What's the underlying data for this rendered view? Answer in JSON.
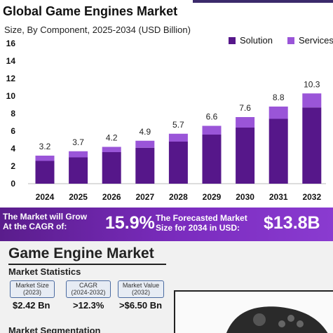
{
  "header": {
    "title": "Global Game Engines Market",
    "subtitle": "Size, By Component, 2025-2034 (USD Billion)"
  },
  "chart_data": {
    "type": "bar",
    "stacked": true,
    "categories": [
      "2024",
      "2025",
      "2026",
      "2027",
      "2028",
      "2029",
      "2030",
      "2031",
      "2032"
    ],
    "totals": [
      3.2,
      3.7,
      4.2,
      4.9,
      5.7,
      6.6,
      7.6,
      8.8,
      10.3
    ],
    "total_labels": [
      "3.2",
      "3.7",
      "4.2",
      "4.9",
      "5.7",
      "6.6",
      "7.6",
      "8.8",
      "10.3"
    ],
    "series": [
      {
        "name": "Solution",
        "values": [
          2.6,
          3.0,
          3.6,
          4.1,
          4.8,
          5.6,
          6.4,
          7.4,
          8.7
        ],
        "color": "#56178a"
      },
      {
        "name": "Services",
        "values": [
          0.6,
          0.7,
          0.6,
          0.8,
          0.9,
          1.0,
          1.2,
          1.4,
          1.6
        ],
        "color": "#9a55d8"
      }
    ],
    "y_ticks": [
      0,
      2,
      4,
      6,
      8,
      10,
      12,
      14,
      16
    ],
    "ylim": [
      0,
      16
    ],
    "grid": false,
    "legend_position": "top-right"
  },
  "banner": {
    "cagr_text_line1": "The Market will Grow",
    "cagr_text_line2": "At the CAGR of:",
    "cagr_value": "15.9%",
    "forecast_text_line1": "The Forecasted Market",
    "forecast_text_line2": "Size for 2034 in USD:",
    "forecast_value": "$13.8B"
  },
  "lower": {
    "title": "Game Engine Market",
    "stats_title": "Market Statistics",
    "stats": [
      {
        "label1": "Market Size",
        "label2": "(2023)",
        "value": "$2.42 Bn"
      },
      {
        "label1": "CAGR",
        "label2": "(2024-2032)",
        "value": ">12.3%"
      },
      {
        "label1": "Market Value",
        "label2": "(2032)",
        "value": ">$6.50 Bn"
      }
    ],
    "segmentation_title": "Market Segmentation"
  }
}
